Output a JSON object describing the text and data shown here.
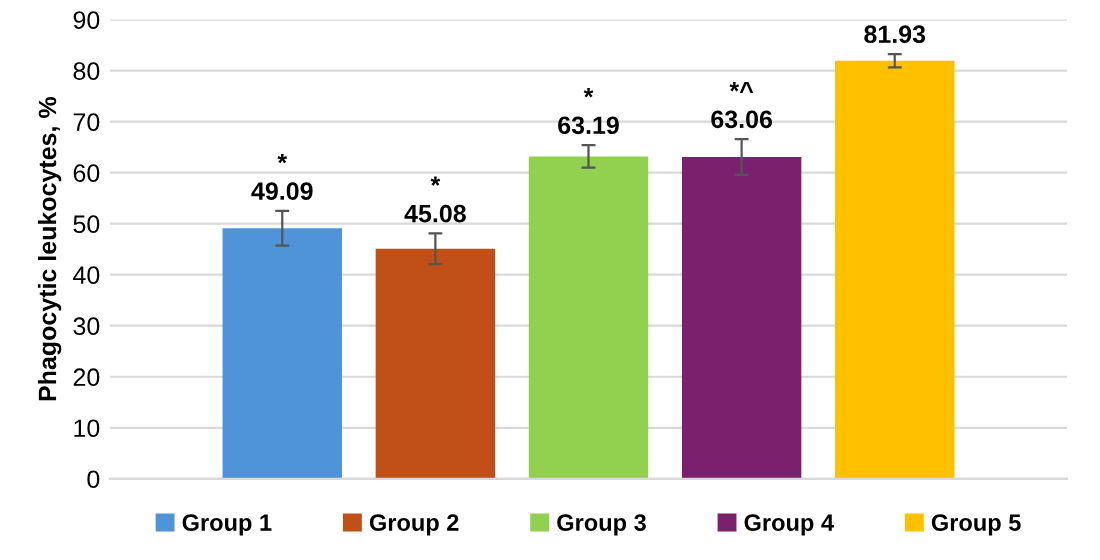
{
  "chart_data": {
    "type": "bar",
    "ylabel": "Phagocytic leukocytes, %",
    "categories": [
      null
    ],
    "series": [
      {
        "name": "Group 1",
        "color": "#4f94d9",
        "values": [
          49.09
        ],
        "errors": [
          3.4
        ]
      },
      {
        "name": "Group 2",
        "color": "#c05018",
        "values": [
          45.08
        ],
        "errors": [
          3.0
        ]
      },
      {
        "name": "Group 3",
        "color": "#92d050",
        "values": [
          63.19
        ],
        "errors": [
          2.2
        ]
      },
      {
        "name": "Group 4",
        "color": "#7a206c",
        "values": [
          63.06
        ],
        "errors": [
          3.5
        ]
      },
      {
        "name": "Group 5",
        "color": "#ffc000",
        "values": [
          81.93
        ],
        "errors": [
          1.3
        ]
      }
    ],
    "annotations": [
      "*",
      "*",
      "*",
      "*^"
    ],
    "ylim": [
      0,
      90
    ],
    "yticks": [
      0,
      10,
      20,
      30,
      40,
      50,
      60,
      70,
      80,
      90
    ],
    "grid": "y",
    "legend": "bottom",
    "data_labels": true
  }
}
